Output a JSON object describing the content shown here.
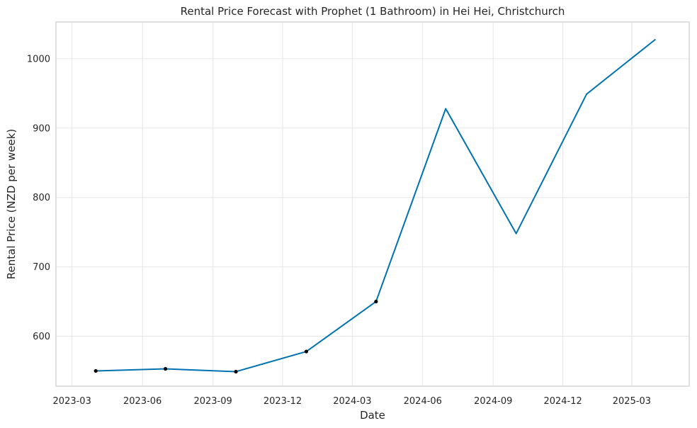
{
  "chart_data": {
    "type": "line",
    "title": "Rental Price Forecast with Prophet (1 Bathroom) in Hei Hei, Christchurch",
    "xlabel": "Date",
    "ylabel": "Rental Price (NZD per week)",
    "x_ticks": [
      "2023-03",
      "2023-06",
      "2023-09",
      "2023-12",
      "2024-03",
      "2024-06",
      "2024-09",
      "2024-12",
      "2025-03"
    ],
    "y_ticks": [
      600,
      700,
      800,
      900,
      1000
    ],
    "xlim": [
      "2023-02-08",
      "2025-05-15"
    ],
    "ylim": [
      528,
      1053
    ],
    "grid": true,
    "series": [
      {
        "values": [
          {
            "x": "2023-04-01",
            "y": 550
          },
          {
            "x": "2023-07-01",
            "y": 553
          },
          {
            "x": "2023-10-01",
            "y": 549
          },
          {
            "x": "2024-01-01",
            "y": 578
          },
          {
            "x": "2024-04-01",
            "y": 650
          },
          {
            "x": "2024-07-01",
            "y": 928
          },
          {
            "x": "2024-10-01",
            "y": 748
          },
          {
            "x": "2025-01-01",
            "y": 949
          },
          {
            "x": "2025-04-01",
            "y": 1028
          }
        ]
      }
    ],
    "observed_points": [
      {
        "x": "2023-04-01",
        "y": 550
      },
      {
        "x": "2023-07-01",
        "y": 553
      },
      {
        "x": "2023-10-01",
        "y": 549
      },
      {
        "x": "2024-01-01",
        "y": 578
      },
      {
        "x": "2024-04-01",
        "y": 650
      }
    ],
    "colors": {
      "line": "#0072B2",
      "points": "#000000",
      "grid": "#e6e6e6",
      "frame": "#cccccc"
    }
  }
}
